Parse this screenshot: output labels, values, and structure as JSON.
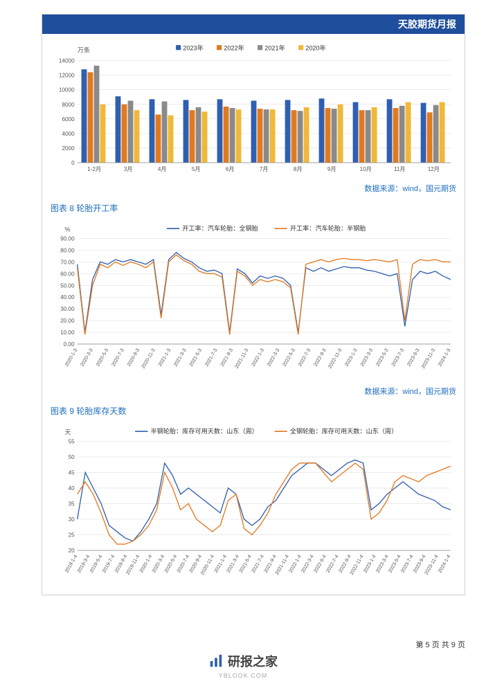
{
  "header": {
    "title": "天胶期货月报"
  },
  "source_text": "数据来源：wind，国元期货",
  "pagenum": "第 5 页 共 9 页",
  "footer": {
    "brand": "研报之家",
    "sub": "YBLOOK.COM"
  },
  "chart1": {
    "type": "bar",
    "ylabel": "万条",
    "ylim": [
      0,
      14000
    ],
    "ytick_step": 2000,
    "categories": [
      "1-2月",
      "3月",
      "4月",
      "5月",
      "6月",
      "7月",
      "8月",
      "9月",
      "10月",
      "11月",
      "12月"
    ],
    "legend": [
      "2023年",
      "2022年",
      "2021年",
      "2020年"
    ],
    "colors": [
      "#2f5fb0",
      "#e2791f",
      "#8a8a8a",
      "#f0b83a"
    ],
    "grid_color": "#d8d8d8",
    "series": [
      [
        12800,
        9100,
        8700,
        8600,
        8700,
        8500,
        8600,
        8800,
        8300,
        8700,
        8200
      ],
      [
        12400,
        8000,
        6600,
        7200,
        7700,
        7400,
        7200,
        7500,
        7200,
        7500,
        6900
      ],
      [
        13300,
        8500,
        8400,
        7600,
        7500,
        7300,
        7100,
        7400,
        7200,
        7800,
        7900
      ],
      [
        8000,
        7200,
        6500,
        7000,
        7300,
        7300,
        7600,
        8000,
        7600,
        8300,
        8300
      ]
    ]
  },
  "chart2": {
    "type": "line",
    "title": "图表 8   轮胎开工率",
    "ylabel": "%",
    "ylim": [
      0,
      90
    ],
    "ytick_step": 10,
    "legend": [
      "开工率：汽车轮胎：全钢胎",
      "开工率：汽车轮胎：半钢胎"
    ],
    "colors": [
      "#2f5fb0",
      "#e2791f"
    ],
    "grid_color": "#d8d8d8",
    "xticks": [
      "2020-1-3",
      "2020-3-3",
      "2020-5-3",
      "2020-7-3",
      "2020-9-3",
      "2020-11-3",
      "2021-1-3",
      "2021-3-3",
      "2021-5-3",
      "2021-7-3",
      "2021-9-3",
      "2021-11-3",
      "2022-1-3",
      "2022-3-3",
      "2022-5-3",
      "2022-7-3",
      "2022-9-3",
      "2022-11-3",
      "2023-1-3",
      "2023-3-3",
      "2023-5-3",
      "2023-7-3",
      "2023-9-3",
      "2023-11-3",
      "2024-1-3"
    ],
    "series": [
      [
        68,
        10,
        55,
        70,
        68,
        72,
        70,
        72,
        70,
        68,
        72,
        25,
        72,
        78,
        73,
        70,
        65,
        62,
        63,
        60,
        10,
        64,
        60,
        52,
        58,
        56,
        58,
        56,
        50,
        10,
        65,
        62,
        65,
        62,
        64,
        66,
        65,
        65,
        63,
        62,
        60,
        58,
        60,
        15,
        55,
        62,
        60,
        62,
        58,
        55
      ],
      [
        65,
        8,
        50,
        68,
        65,
        70,
        67,
        70,
        68,
        65,
        70,
        22,
        70,
        76,
        71,
        68,
        62,
        60,
        60,
        57,
        8,
        62,
        58,
        50,
        55,
        53,
        55,
        53,
        48,
        8,
        68,
        70,
        72,
        70,
        72,
        73,
        72,
        72,
        71,
        72,
        71,
        70,
        72,
        20,
        68,
        72,
        71,
        72,
        70,
        70
      ]
    ]
  },
  "chart3": {
    "type": "line",
    "title": "图表 9 轮胎库存天数",
    "ylabel": "天",
    "ylim": [
      20,
      55
    ],
    "ytick_step": 5,
    "legend": [
      "半钢轮胎：库存可用天数：山东（周）",
      "全钢轮胎：库存可用天数：山东（周）"
    ],
    "colors": [
      "#2f5fb0",
      "#e2791f"
    ],
    "grid_color": "#d8d8d8",
    "xticks": [
      "2019-1-4",
      "2019-3-4",
      "2019-5-4",
      "2019-7-4",
      "2019-9-4",
      "2019-11-4",
      "2020-1-4",
      "2020-3-4",
      "2020-5-4",
      "2020-7-4",
      "2020-9-4",
      "2020-11-4",
      "2021-1-4",
      "2021-3-4",
      "2021-5-4",
      "2021-7-4",
      "2021-9-4",
      "2021-11-4",
      "2022-1-4",
      "2022-3-4",
      "2022-5-4",
      "2022-7-4",
      "2022-9-4",
      "2022-11-4",
      "2023-1-4",
      "2023-3-4",
      "2023-5-4",
      "2023-7-4",
      "2023-9-4",
      "2023-11-4",
      "2024-1-4"
    ],
    "series": [
      [
        30,
        45,
        40,
        35,
        28,
        26,
        24,
        23,
        26,
        30,
        35,
        48,
        44,
        38,
        40,
        38,
        36,
        34,
        32,
        40,
        38,
        30,
        28,
        30,
        34,
        36,
        40,
        44,
        46,
        48,
        48,
        46,
        44,
        46,
        48,
        49,
        48,
        33,
        35,
        38,
        40,
        42,
        40,
        38,
        37,
        36,
        34,
        33
      ],
      [
        38,
        42,
        38,
        32,
        25,
        22,
        22,
        23,
        25,
        28,
        33,
        45,
        40,
        33,
        35,
        30,
        28,
        26,
        28,
        36,
        38,
        27,
        25,
        28,
        32,
        38,
        42,
        46,
        48,
        48,
        48,
        45,
        42,
        44,
        46,
        48,
        46,
        30,
        32,
        36,
        42,
        44,
        43,
        42,
        44,
        45,
        46,
        47
      ]
    ]
  }
}
